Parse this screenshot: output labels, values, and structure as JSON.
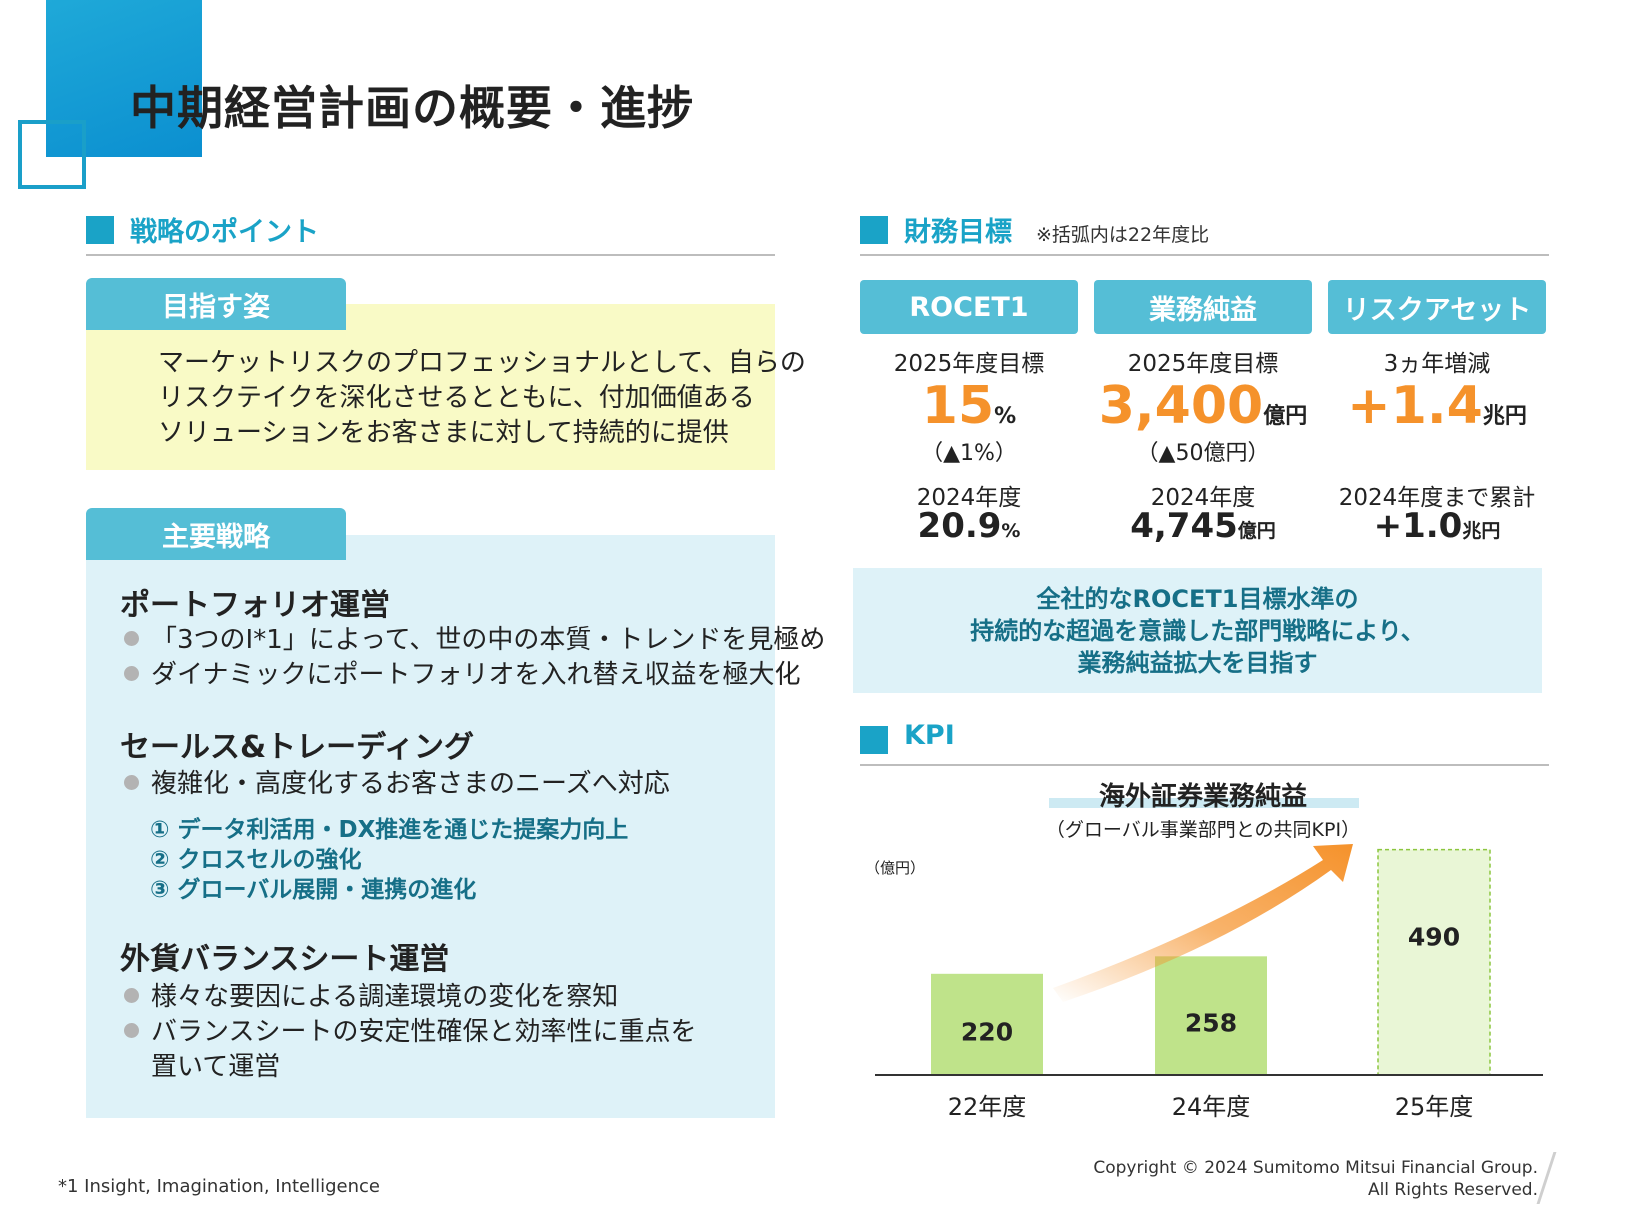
{
  "page": {
    "title": "中期経営計画の概要・進捗",
    "footnote": "*1 Insight, Imagination, Intelligence",
    "copyright_line1": "Copyright © 2024 Sumitomo Mitsui Financial Group.",
    "copyright_line2": "All Rights Reserved."
  },
  "strategy": {
    "header": "戦略のポイント",
    "goal": {
      "tab": "目指す姿",
      "lines": [
        "マーケットリスクのプロフェッショナルとして、自らの",
        "リスクテイクを深化させるとともに、付加価値ある",
        "ソリューションをお客さまに対して持続的に提供"
      ]
    },
    "main": {
      "tab": "主要戦略",
      "sections": [
        {
          "title": "ポートフォリオ運営",
          "bullets": [
            "「3つのI*1」によって、世の中の本質・トレンドを見極め",
            "ダイナミックにポートフォリオを入れ替え収益を極大化"
          ]
        },
        {
          "title": "セールス&トレーディング",
          "bullets": [
            "複雑化・高度化するお客さまのニーズへ対応"
          ],
          "subs": [
            "① データ利活用・DX推進を通じた提案力向上",
            "② クロスセルの強化",
            "③ グローバル展開・連携の進化"
          ]
        },
        {
          "title": "外貨バランスシート運営",
          "bullets": [
            "様々な要因による調達環境の変化を察知",
            "バランスシートの安定性確保と効率性に重点を"
          ],
          "continuation": "置いて運営"
        }
      ]
    }
  },
  "financial": {
    "header": "財務目標",
    "note": "※括弧内は22年度比",
    "columns": [
      {
        "tab": "ROCET1",
        "label": "2025年度目標",
        "big": "15",
        "big_unit": "%",
        "paren": "（▲1%）",
        "label2": "2024年度",
        "mid": "20.9",
        "mid_unit": "%"
      },
      {
        "tab": "業務純益",
        "label": "2025年度目標",
        "big": "3,400",
        "big_unit": "億円",
        "paren": "（▲50億円）",
        "label2": "2024年度",
        "mid": "4,745",
        "mid_unit": "億円"
      },
      {
        "tab": "リスクアセット",
        "label": "3ヵ年増減",
        "big": "+1.4",
        "big_unit": "兆円",
        "paren": "",
        "label2": "2024年度まで累計",
        "mid": "+1.0",
        "mid_unit": "兆円"
      }
    ],
    "message": [
      "全社的なROCET1目標水準の",
      "持続的な超過を意識した部門戦略により、",
      "業務純益拡大を目指す"
    ]
  },
  "kpi": {
    "header": "KPI",
    "chart_title": "海外証券業務純益",
    "chart_subtitle": "（グローバル事業部門との共同KPI）",
    "unit_label": "（億円）",
    "colors": {
      "bar": "#bfe38a",
      "target_bar": "#e9f6d6",
      "arrow": "#f5922b"
    }
  },
  "chart_data": {
    "type": "bar",
    "title": "海外証券業務純益",
    "ylabel": "（億円）",
    "categories": [
      "22年度",
      "24年度",
      "25年度"
    ],
    "values": [
      220,
      258,
      490
    ],
    "value_labels": [
      "220",
      "258",
      "490"
    ],
    "ylim": [
      0,
      500
    ],
    "grid": false
  }
}
